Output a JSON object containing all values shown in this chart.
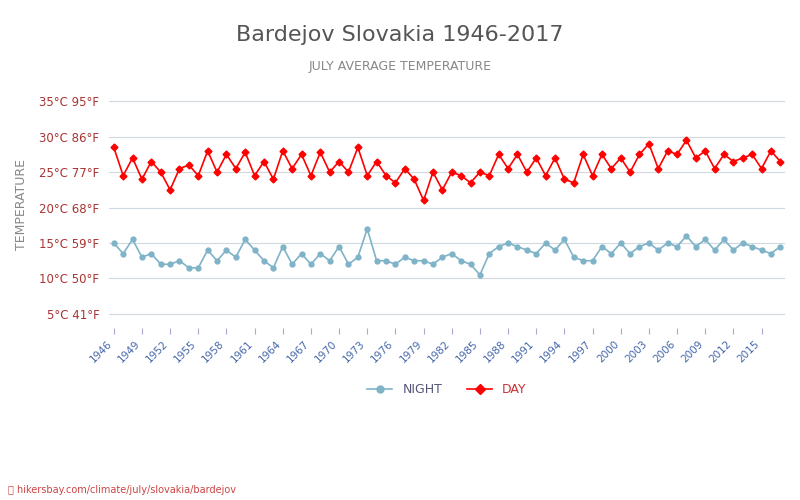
{
  "title": "Bardejov Slovakia 1946-2017",
  "subtitle": "JULY AVERAGE TEMPERATURE",
  "xlabel": "",
  "ylabel": "TEMPERATURE",
  "years": [
    1946,
    1947,
    1948,
    1949,
    1950,
    1951,
    1952,
    1953,
    1954,
    1955,
    1956,
    1957,
    1958,
    1959,
    1960,
    1961,
    1962,
    1963,
    1964,
    1965,
    1966,
    1967,
    1968,
    1969,
    1970,
    1971,
    1972,
    1973,
    1974,
    1975,
    1976,
    1977,
    1978,
    1979,
    1980,
    1981,
    1982,
    1983,
    1984,
    1985,
    1986,
    1987,
    1988,
    1989,
    1990,
    1991,
    1992,
    1993,
    1994,
    1995,
    1996,
    1997,
    1998,
    1999,
    2000,
    2001,
    2002,
    2003,
    2004,
    2005,
    2006,
    2007,
    2008,
    2009,
    2010,
    2011,
    2012,
    2013,
    2014,
    2015,
    2016,
    2017
  ],
  "day_temps": [
    28.5,
    24.5,
    27.0,
    24.0,
    26.5,
    25.0,
    22.5,
    25.5,
    26.0,
    24.5,
    28.0,
    25.0,
    27.5,
    25.5,
    27.8,
    24.5,
    26.5,
    24.0,
    28.0,
    25.5,
    27.5,
    24.5,
    27.8,
    25.0,
    26.5,
    25.0,
    28.5,
    24.5,
    26.5,
    24.5,
    23.5,
    25.5,
    24.0,
    21.0,
    25.0,
    22.5,
    25.0,
    24.5,
    23.5,
    25.0,
    24.5,
    27.5,
    25.5,
    27.5,
    25.0,
    27.0,
    24.5,
    27.0,
    24.0,
    23.5,
    27.5,
    24.5,
    27.5,
    25.5,
    27.0,
    25.0,
    27.5,
    29.0,
    25.5,
    28.0,
    27.5,
    29.5,
    27.0,
    28.0,
    25.5,
    27.5,
    26.5,
    27.0,
    27.5,
    25.5,
    28.0,
    26.5
  ],
  "night_temps": [
    15.0,
    13.5,
    15.5,
    13.0,
    13.5,
    12.0,
    12.0,
    12.5,
    11.5,
    11.5,
    14.0,
    12.5,
    14.0,
    13.0,
    15.5,
    14.0,
    12.5,
    11.5,
    14.5,
    12.0,
    13.5,
    12.0,
    13.5,
    12.5,
    14.5,
    12.0,
    13.0,
    17.0,
    12.5,
    12.5,
    12.0,
    13.0,
    12.5,
    12.5,
    12.0,
    13.0,
    13.5,
    12.5,
    12.0,
    10.5,
    13.5,
    14.5,
    15.0,
    14.5,
    14.0,
    13.5,
    15.0,
    14.0,
    15.5,
    13.0,
    12.5,
    12.5,
    14.5,
    13.5,
    15.0,
    13.5,
    14.5,
    15.0,
    14.0,
    15.0,
    14.5,
    16.0,
    14.5,
    15.5,
    14.0,
    15.5,
    14.0,
    15.0,
    14.5,
    14.0,
    13.5,
    14.5
  ],
  "day_color": "#ff0000",
  "night_color": "#7fb3c8",
  "yticks_c": [
    5,
    10,
    15,
    20,
    25,
    30,
    35
  ],
  "yticks_f": [
    41,
    50,
    59,
    68,
    77,
    86,
    95
  ],
  "xtick_years": [
    1946,
    1949,
    1952,
    1955,
    1958,
    1961,
    1964,
    1967,
    1970,
    1973,
    1976,
    1979,
    1982,
    1985,
    1988,
    1991,
    1994,
    1997,
    2000,
    2003,
    2006,
    2009,
    2012,
    2015
  ],
  "ylim": [
    3,
    38
  ],
  "bg_color": "#ffffff",
  "grid_color": "#d0d8e0",
  "title_color": "#555555",
  "subtitle_color": "#888888",
  "ylabel_color": "#888888",
  "tick_color": "#aa3333",
  "xtick_color": "#4466aa",
  "watermark": "hikersbay.com/climate/july/slovakia/bardejov",
  "legend_night": "NIGHT",
  "legend_day": "DAY"
}
